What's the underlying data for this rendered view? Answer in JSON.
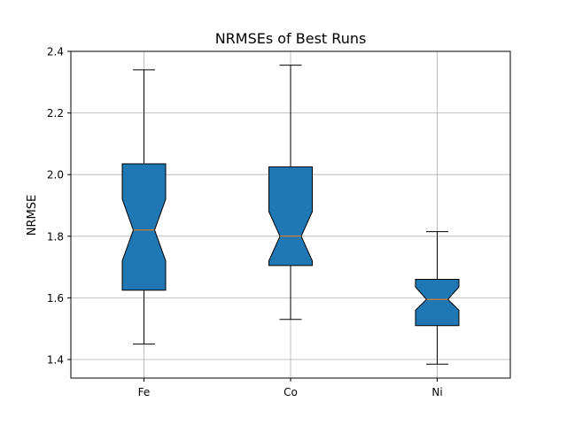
{
  "chart_data": {
    "type": "box",
    "title": "NRMSEs of Best Runs",
    "xlabel": "",
    "ylabel": "NRMSE",
    "ylim": [
      1.34,
      2.4
    ],
    "yticks": [
      "1.4",
      "1.6",
      "1.8",
      "2.0",
      "2.2",
      "2.4"
    ],
    "grid": true,
    "notched": true,
    "categories": [
      "Fe",
      "Co",
      "Ni"
    ],
    "boxes": [
      {
        "name": "Fe",
        "whisker_low": 1.45,
        "q1": 1.625,
        "median": 1.82,
        "q3": 2.035,
        "whisker_high": 2.34,
        "notch_low": 1.72,
        "notch_high": 1.92
      },
      {
        "name": "Co",
        "whisker_low": 1.53,
        "q1": 1.705,
        "median": 1.8,
        "q3": 2.025,
        "whisker_high": 2.355,
        "notch_low": 1.72,
        "notch_high": 1.88
      },
      {
        "name": "Ni",
        "whisker_low": 1.385,
        "q1": 1.51,
        "median": 1.595,
        "q3": 1.66,
        "whisker_high": 1.815,
        "notch_low": 1.56,
        "notch_high": 1.635
      }
    ],
    "colors": {
      "box_fill": "#1f77b4",
      "median": "#ff7f0e",
      "grid": "#b0b0b0",
      "edge": "#000000"
    }
  }
}
